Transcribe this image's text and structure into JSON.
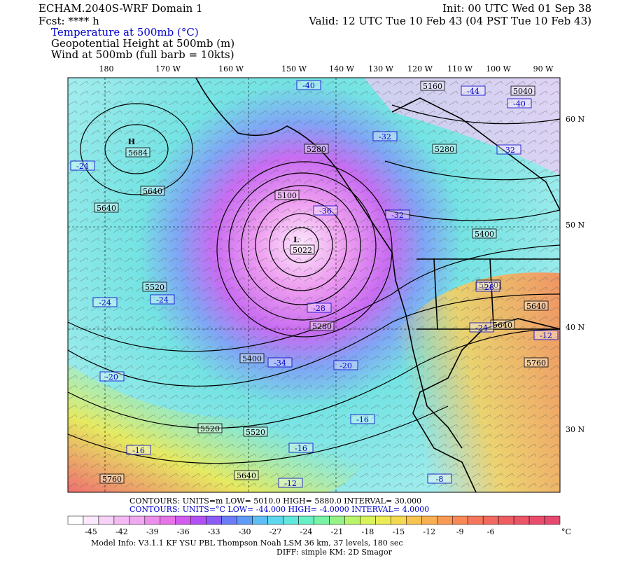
{
  "header": {
    "model": "ECHAM.2040S-WRF Domain 1",
    "fcst": "Fcst: **** h",
    "init": "Init: 00 UTC Wed 01 Sep 38",
    "valid": "Valid: 12 UTC Tue 10 Feb 43 (04 PST Tue 10 Feb 43)",
    "fields": [
      "Temperature at 500mb (°C)",
      "Geopotential Height at 500mb (m)",
      "Wind at 500mb (full barb = 10kts)"
    ]
  },
  "lon_labels": [
    "180",
    "170 W",
    "160 W",
    "150 W",
    "140 W",
    "130 W",
    "120 W",
    "110 W",
    "100 W",
    "90 W"
  ],
  "lat_labels": [
    "60 N",
    "50 N",
    "40 N",
    "30 N"
  ],
  "centers": [
    "H",
    "L"
  ],
  "height_labels": [
    "5160",
    "5040",
    "5280",
    "5280",
    "5684",
    "5640",
    "5640",
    "5100",
    "5022",
    "5400",
    "5520",
    "5520",
    "5640",
    "5280",
    "5640",
    "5400",
    "5760",
    "5520",
    "5520",
    "5640",
    "5760"
  ],
  "temp_labels": [
    "-40",
    "-44",
    "-40",
    "-32",
    "-32",
    "-24",
    "-36",
    "-32",
    "-28",
    "-24",
    "-24",
    "-28",
    "-24",
    "-12",
    "-34",
    "-20",
    "-20",
    "-16",
    "-16",
    "-16",
    "-12",
    "-8"
  ],
  "contour_info": {
    "height": "CONTOURS:  UNITS=m  LOW=  5010.0      HIGH=  5880.0      INTERVAL=   30.000",
    "temp": "CONTOURS:  UNITS=°C  LOW= -44.000     HIGH= -4.0000      INTERVAL=   4.0000"
  },
  "colorbar": {
    "labels": [
      "-45",
      "-42",
      "-39",
      "-36",
      "-33",
      "-30",
      "-27",
      "-24",
      "-21",
      "-18",
      "-15",
      "-12",
      "-9",
      "-6"
    ],
    "unit": "°C",
    "colors": [
      "#ffffff",
      "#fbe8fb",
      "#f7d2f7",
      "#f3bbf3",
      "#f0a8f0",
      "#ec8fec",
      "#e873e8",
      "#d35cf0",
      "#b24ff5",
      "#8c5cf7",
      "#6b7cf7",
      "#5f9cf7",
      "#5ebff5",
      "#5fd7ee",
      "#62e7dc",
      "#67efc5",
      "#78f2a6",
      "#95f386",
      "#b7f46a",
      "#d8f25a",
      "#ecea55",
      "#f4d852",
      "#f7c351",
      "#f8ae52",
      "#f89a55",
      "#f78858",
      "#f5775b",
      "#f2695f",
      "#ef5d62",
      "#ec5468",
      "#e94d6c",
      "#e6486f"
    ]
  },
  "footer": [
    "Model Info: V3.1.1    KF     YSU PBL   Thompson    Noah LSM  36 km,    37 levels,   180 sec",
    "DIFF: simple KM: 2D Smagor"
  ]
}
